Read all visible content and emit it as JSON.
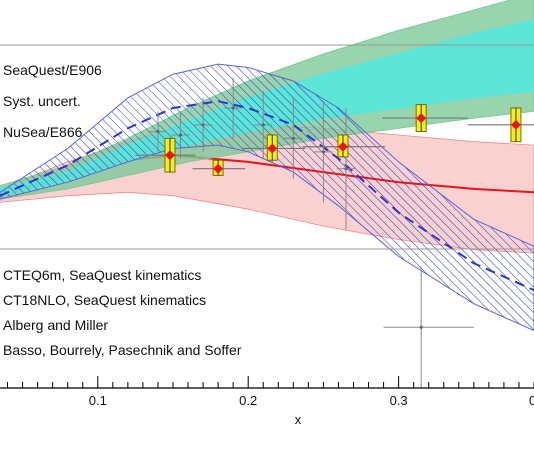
{
  "chart_data": {
    "type": "scatter",
    "title": "",
    "xlabel": "x",
    "ylabel": "",
    "xlim": [
      0.035,
      0.39
    ],
    "ylim": [
      0.55,
      1.7
    ],
    "x_ticks": [
      "0.1",
      "0.2",
      "0.3"
    ],
    "x_ticks_partial": [
      "0"
    ],
    "grid": false,
    "legend_placement": "left",
    "legend_top": [
      "SeaQuest/E906",
      "Syst. uncert.",
      "NuSea/E866"
    ],
    "legend_bottom": [
      "CTEQ6m, SeaQuest kinematics",
      "CT18NLO, SeaQuest kinematics",
      "Alberg and Miller",
      "Basso, Bourrely, Pasechnik and Soffer"
    ],
    "series": [
      {
        "name": "SeaQuest/E906",
        "style": "red-diamond-with-yellow-box",
        "color": "#e8151b",
        "box_color": "#f5ee1e",
        "points": [
          {
            "x": 0.148,
            "y": 1.24,
            "ylo": 1.19,
            "yhi": 1.29,
            "xlo": 0.125,
            "xhi": 0.165
          },
          {
            "x": 0.18,
            "y": 1.2,
            "ylo": 1.18,
            "yhi": 1.225,
            "xlo": 0.163,
            "xhi": 0.198
          },
          {
            "x": 0.216,
            "y": 1.26,
            "ylo": 1.225,
            "yhi": 1.3,
            "xlo": 0.196,
            "xhi": 0.238
          },
          {
            "x": 0.263,
            "y": 1.265,
            "ylo": 1.235,
            "yhi": 1.3,
            "xlo": 0.236,
            "xhi": 0.291
          },
          {
            "x": 0.315,
            "y": 1.35,
            "ylo": 1.31,
            "yhi": 1.39,
            "xlo": 0.289,
            "xhi": 0.346
          },
          {
            "x": 0.378,
            "y": 1.33,
            "ylo": 1.28,
            "yhi": 1.38,
            "xlo": 0.346,
            "xhi": 0.4
          }
        ]
      },
      {
        "name": "NuSea/E866",
        "style": "grey-error-bars",
        "color": "#888888",
        "points": [
          {
            "x": 0.14,
            "y": 1.31,
            "ylo": 1.25,
            "yhi": 1.37
          },
          {
            "x": 0.155,
            "y": 1.3,
            "ylo": 1.23,
            "yhi": 1.37
          },
          {
            "x": 0.17,
            "y": 1.33,
            "ylo": 1.25,
            "yhi": 1.41
          },
          {
            "x": 0.19,
            "y": 1.38,
            "ylo": 1.29,
            "yhi": 1.47
          },
          {
            "x": 0.21,
            "y": 1.33,
            "ylo": 1.23,
            "yhi": 1.43
          },
          {
            "x": 0.23,
            "y": 1.29,
            "ylo": 1.17,
            "yhi": 1.41
          },
          {
            "x": 0.25,
            "y": 1.25,
            "ylo": 1.1,
            "yhi": 1.4
          },
          {
            "x": 0.265,
            "y": 1.2,
            "ylo": 1.02,
            "yhi": 1.38
          },
          {
            "x": 0.315,
            "y": 0.73,
            "ylo": 0.55,
            "yhi": 0.91,
            "xlo": 0.29,
            "xhi": 0.35
          }
        ]
      },
      {
        "name": "CTEQ6m, SeaQuest kinematics",
        "style": "band",
        "color": "#4fe8e0",
        "x": [
          0.035,
          0.08,
          0.12,
          0.16,
          0.2,
          0.25,
          0.3,
          0.35,
          0.39
        ],
        "lo": [
          1.12,
          1.16,
          1.22,
          1.27,
          1.31,
          1.35,
          1.38,
          1.41,
          1.43
        ],
        "hi": [
          1.14,
          1.19,
          1.27,
          1.34,
          1.41,
          1.48,
          1.54,
          1.6,
          1.64
        ]
      },
      {
        "name": "CT18NLO, SeaQuest kinematics",
        "style": "band",
        "color": "#7ec99a",
        "x": [
          0.035,
          0.08,
          0.12,
          0.16,
          0.2,
          0.25,
          0.3,
          0.35,
          0.39
        ],
        "lo": [
          1.11,
          1.14,
          1.18,
          1.22,
          1.25,
          1.29,
          1.32,
          1.35,
          1.37
        ],
        "hi": [
          1.15,
          1.21,
          1.29,
          1.38,
          1.46,
          1.54,
          1.61,
          1.67,
          1.72
        ]
      },
      {
        "name": "Alberg and Miller",
        "style": "band-with-line",
        "color": "#f7b9b9",
        "line_color": "#e8151b",
        "x": [
          0.035,
          0.08,
          0.12,
          0.15,
          0.2,
          0.25,
          0.3,
          0.35,
          0.39
        ],
        "mid": [
          1.12,
          1.18,
          1.225,
          1.24,
          1.22,
          1.19,
          1.16,
          1.14,
          1.13
        ],
        "lo": [
          1.1,
          1.12,
          1.13,
          1.12,
          1.08,
          1.03,
          0.99,
          0.96,
          0.95
        ],
        "hi": [
          1.14,
          1.22,
          1.28,
          1.32,
          1.33,
          1.32,
          1.3,
          1.28,
          1.27
        ]
      },
      {
        "name": "Basso, Bourrely, Pasechnik and Soffer",
        "style": "hatched-band-with-dashed-line",
        "color": "#2e36c8",
        "x": [
          0.035,
          0.08,
          0.12,
          0.15,
          0.18,
          0.2,
          0.23,
          0.26,
          0.3,
          0.35,
          0.39
        ],
        "mid": [
          1.12,
          1.21,
          1.32,
          1.38,
          1.4,
          1.38,
          1.33,
          1.23,
          1.07,
          0.92,
          0.84
        ],
        "lo": [
          1.11,
          1.16,
          1.22,
          1.26,
          1.27,
          1.25,
          1.19,
          1.09,
          0.94,
          0.8,
          0.72
        ],
        "hi": [
          1.13,
          1.26,
          1.41,
          1.48,
          1.51,
          1.5,
          1.46,
          1.38,
          1.22,
          1.05,
          0.97
        ]
      }
    ]
  }
}
